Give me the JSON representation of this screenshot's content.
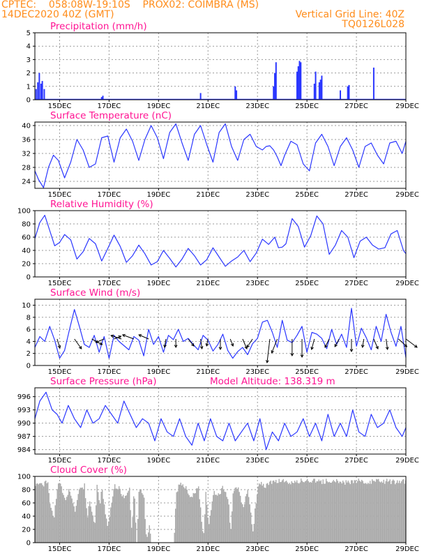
{
  "header": {
    "source": "CPTEC:",
    "coords": "058:08W-19:10S",
    "station": "PROX02: COIMBRA (MS)",
    "run": "14DEC2020 40Z (GMT)",
    "grid_note": "Vertical Grid Line: 40Z",
    "model": "TQ0126L028"
  },
  "colors": {
    "header": "#ff8c1a",
    "title": "#ff1493",
    "series": "#2a36ff",
    "cloud": "#aaaaaa"
  },
  "chart_data": [
    {
      "type": "bar",
      "title": "Precipitation (mm/h)",
      "ylim": [
        0,
        5
      ],
      "yticks": [
        0,
        1,
        2,
        3,
        4,
        5
      ],
      "xlim": [
        14.0,
        29.0
      ],
      "xticks": [
        "15DEC",
        "17DEC",
        "19DEC",
        "21DEC",
        "23DEC",
        "25DEC",
        "27DEC",
        "29DEC"
      ],
      "x": [
        14.05,
        14.12,
        14.18,
        14.25,
        14.3,
        14.38,
        16.7,
        16.75,
        20.7,
        22.1,
        22.15,
        23.65,
        23.7,
        23.75,
        24.6,
        24.65,
        24.7,
        24.75,
        25.3,
        25.35,
        25.5,
        25.55,
        25.6,
        26.35,
        26.65,
        26.7,
        27.7
      ],
      "values": [
        0.8,
        1.3,
        2.0,
        1.2,
        1.4,
        0.8,
        0.2,
        0.3,
        0.5,
        1.0,
        0.7,
        1.0,
        2.0,
        2.8,
        2.1,
        2.5,
        2.9,
        2.8,
        1.2,
        2.1,
        1.3,
        1.5,
        1.8,
        0.7,
        1.0,
        1.1,
        2.4
      ]
    },
    {
      "type": "line",
      "title": "Surface Temperature (nC)",
      "ylim": [
        22,
        41
      ],
      "yticks": [
        24,
        28,
        32,
        36,
        40
      ],
      "xlim": [
        14.0,
        29.0
      ],
      "xticks": [
        "15DEC",
        "17DEC",
        "19DEC",
        "21DEC",
        "23DEC",
        "25DEC",
        "27DEC",
        "29DEC"
      ],
      "x": [
        14.0,
        14.15,
        14.35,
        14.55,
        14.75,
        14.95,
        15.2,
        15.45,
        15.7,
        15.95,
        16.2,
        16.45,
        16.7,
        16.95,
        17.2,
        17.45,
        17.7,
        17.95,
        18.2,
        18.45,
        18.7,
        18.95,
        19.2,
        19.45,
        19.7,
        19.95,
        20.2,
        20.45,
        20.7,
        20.95,
        21.2,
        21.45,
        21.7,
        21.95,
        22.2,
        22.45,
        22.7,
        22.95,
        23.2,
        23.35,
        23.5,
        23.65,
        23.8,
        23.95,
        24.1,
        24.35,
        24.6,
        24.85,
        25.1,
        25.35,
        25.6,
        25.85,
        26.1,
        26.35,
        26.6,
        26.85,
        27.1,
        27.35,
        27.6,
        27.85,
        28.1,
        28.35,
        28.6,
        28.85,
        29.0
      ],
      "values": [
        27,
        24.5,
        22.2,
        28,
        31.5,
        30,
        25,
        29.5,
        36,
        33,
        28,
        29,
        36.5,
        37,
        29.5,
        36.5,
        39,
        35.5,
        30,
        36,
        40,
        36.5,
        30.5,
        38,
        40.5,
        35,
        30,
        37.5,
        40,
        34.5,
        29.5,
        38,
        40.5,
        34,
        30,
        36,
        37.5,
        34,
        33,
        34,
        34.2,
        33,
        31,
        28.5,
        31.5,
        35.5,
        34.5,
        29,
        27,
        35,
        37.5,
        34,
        28.5,
        34,
        36.5,
        33,
        28,
        34,
        35,
        31.5,
        29,
        35,
        35.5,
        32,
        35.5
      ]
    },
    {
      "type": "line",
      "title": "Relative Humidity (%)",
      "ylim": [
        0,
        100
      ],
      "yticks": [
        0,
        20,
        40,
        60,
        80,
        100
      ],
      "xlim": [
        14.0,
        29.0
      ],
      "xticks": [
        "15DEC",
        "17DEC",
        "19DEC",
        "21DEC",
        "23DEC",
        "25DEC",
        "27DEC",
        "29DEC"
      ],
      "x": [
        14.0,
        14.2,
        14.4,
        14.6,
        14.8,
        15.0,
        15.2,
        15.45,
        15.7,
        15.95,
        16.2,
        16.45,
        16.7,
        16.95,
        17.2,
        17.45,
        17.7,
        17.95,
        18.2,
        18.45,
        18.7,
        18.95,
        19.2,
        19.45,
        19.7,
        19.95,
        20.2,
        20.45,
        20.7,
        20.95,
        21.2,
        21.45,
        21.7,
        21.95,
        22.2,
        22.45,
        22.7,
        22.95,
        23.2,
        23.45,
        23.7,
        23.85,
        24.0,
        24.15,
        24.4,
        24.65,
        24.9,
        25.15,
        25.4,
        25.65,
        25.9,
        26.15,
        26.4,
        26.65,
        26.9,
        27.15,
        27.4,
        27.65,
        27.9,
        28.15,
        28.4,
        28.65,
        28.9,
        29.0
      ],
      "values": [
        58,
        82,
        93,
        70,
        47,
        52,
        64,
        56,
        27,
        38,
        58,
        50,
        24,
        43,
        63,
        46,
        22,
        32,
        48,
        35,
        18,
        23,
        40,
        28,
        15,
        27,
        43,
        32,
        18,
        26,
        44,
        30,
        16,
        24,
        30,
        40,
        23,
        36,
        57,
        49,
        60,
        44,
        45,
        50,
        88,
        76,
        45,
        62,
        92,
        80,
        34,
        48,
        70,
        60,
        29,
        54,
        60,
        48,
        42,
        44,
        65,
        70,
        40,
        35
      ]
    },
    {
      "type": "line",
      "title": "Surface Wind (m/s)",
      "ylim": [
        0,
        11
      ],
      "yticks": [
        0,
        2,
        4,
        6,
        8,
        10
      ],
      "xlim": [
        14.0,
        29.0
      ],
      "xticks": [
        "15DEC",
        "17DEC",
        "19DEC",
        "21DEC",
        "23DEC",
        "25DEC",
        "27DEC",
        "29DEC"
      ],
      "x": [
        14.0,
        14.2,
        14.4,
        14.6,
        14.8,
        15.0,
        15.2,
        15.4,
        15.6,
        15.8,
        16.0,
        16.2,
        16.4,
        16.6,
        16.8,
        17.0,
        17.2,
        17.4,
        17.6,
        17.8,
        18.0,
        18.2,
        18.4,
        18.6,
        18.8,
        19.0,
        19.2,
        19.4,
        19.6,
        19.8,
        20.0,
        20.2,
        20.4,
        20.6,
        20.8,
        21.0,
        21.2,
        21.4,
        21.6,
        21.8,
        22.0,
        22.2,
        22.4,
        22.6,
        22.8,
        23.0,
        23.2,
        23.4,
        23.6,
        23.8,
        24.0,
        24.2,
        24.4,
        24.6,
        24.8,
        25.0,
        25.2,
        25.4,
        25.6,
        25.8,
        26.0,
        26.2,
        26.4,
        26.6,
        26.8,
        27.0,
        27.2,
        27.4,
        27.6,
        27.8,
        28.0,
        28.2,
        28.4,
        28.6,
        28.8,
        29.0
      ],
      "values": [
        3,
        4.8,
        4,
        6.5,
        4.2,
        1.2,
        2.5,
        6,
        9.3,
        6.5,
        3.5,
        3,
        5,
        2.2,
        4.8,
        1.2,
        5,
        4,
        3.3,
        2.6,
        4.8,
        4.2,
        1.6,
        6,
        3.5,
        4.8,
        2.2,
        5,
        4.3,
        6,
        4,
        4.5,
        3.5,
        2.6,
        5,
        4.2,
        2.4,
        3.5,
        5.2,
        2.5,
        1.2,
        2.3,
        3,
        1.8,
        3.6,
        4.5,
        7.2,
        7.5,
        5.5,
        3,
        7.5,
        4.2,
        3.8,
        5,
        6.5,
        2.2,
        5.5,
        5.2,
        4.5,
        2.8,
        6,
        3.5,
        5.2,
        3,
        9.5,
        3.2,
        6.2,
        4.6,
        2.6,
        6.5,
        4,
        8.5,
        5.5,
        3.2,
        6.5,
        1.3
      ],
      "vectors": {
        "x": [
          14.9,
          15.6,
          16.3,
          16.8,
          17.2,
          17.5,
          18.0,
          18.6,
          19.3,
          19.7,
          20.2,
          20.7,
          21.0,
          21.5,
          21.9,
          22.4,
          22.8,
          23.5,
          23.8,
          24.4,
          24.8,
          25.3,
          25.9,
          26.3,
          26.8,
          27.3,
          27.7,
          28.2,
          28.7,
          29.0
        ],
        "u": [
          0.4,
          1.0,
          1.5,
          -1.2,
          1.0,
          -1.5,
          -1.6,
          -1.4,
          -0.2,
          0.0,
          0.8,
          0.2,
          -0.2,
          0.0,
          0.4,
          0.6,
          -0.8,
          -0.4,
          -0.8,
          0.0,
          0.0,
          -0.4,
          -0.6,
          -0.6,
          0.0,
          -0.2,
          0.6,
          0.2,
          1.2,
          1.6
        ],
        "v": [
          -1.3,
          -1.4,
          -0.8,
          -0.5,
          0.4,
          0.5,
          0.6,
          0.6,
          -1.2,
          -1.2,
          -1.0,
          -1.4,
          -1.0,
          -1.5,
          -1.0,
          -1.4,
          -1.2,
          -3.4,
          -2.0,
          -2.4,
          -2.6,
          -1.5,
          -1.2,
          -1.1,
          -1.8,
          -1.2,
          -1.4,
          -1.5,
          -1.1,
          -1.2
        ]
      }
    },
    {
      "type": "line",
      "title": "Surface Pressure (hPa)",
      "annotation": "Model Altitude: 138.319 m",
      "ylim": [
        983,
        998
      ],
      "yticks": [
        984,
        987,
        990,
        993,
        996
      ],
      "xlim": [
        14.0,
        29.0
      ],
      "xticks": [
        "15DEC",
        "17DEC",
        "19DEC",
        "21DEC",
        "23DEC",
        "25DEC",
        "27DEC",
        "29DEC"
      ],
      "x": [
        14.0,
        14.2,
        14.45,
        14.7,
        14.9,
        15.1,
        15.35,
        15.6,
        15.85,
        16.1,
        16.35,
        16.6,
        16.85,
        17.1,
        17.35,
        17.6,
        17.85,
        18.1,
        18.35,
        18.6,
        18.85,
        19.1,
        19.35,
        19.6,
        19.85,
        20.1,
        20.35,
        20.6,
        20.85,
        21.1,
        21.35,
        21.6,
        21.85,
        22.1,
        22.35,
        22.6,
        22.85,
        23.1,
        23.35,
        23.6,
        23.85,
        24.1,
        24.35,
        24.6,
        24.85,
        25.1,
        25.35,
        25.6,
        25.85,
        26.1,
        26.35,
        26.6,
        26.85,
        27.1,
        27.35,
        27.6,
        27.85,
        28.1,
        28.35,
        28.6,
        28.85,
        29.0
      ],
      "values": [
        991,
        995,
        997,
        993,
        992,
        990,
        994,
        991,
        989,
        993,
        990,
        991,
        994,
        992,
        990,
        995,
        992,
        989,
        991,
        990,
        986,
        991,
        988,
        987,
        991,
        987,
        985,
        990,
        986,
        991,
        987,
        986,
        990,
        986,
        988,
        990,
        986,
        991,
        984,
        988,
        986,
        990,
        987,
        988,
        991,
        987,
        990,
        986,
        992,
        987,
        990,
        987,
        993,
        988,
        987,
        992,
        989,
        990,
        993,
        989,
        987,
        989
      ]
    },
    {
      "type": "area",
      "title": "Cloud Cover (%)",
      "ylim": [
        0,
        100
      ],
      "yticks": [
        0,
        20,
        40,
        60,
        80,
        100
      ],
      "xlim": [
        14.0,
        29.0
      ],
      "xticks": [
        "15DEC",
        "17DEC",
        "19DEC",
        "21DEC",
        "23DEC",
        "25DEC",
        "27DEC",
        "29DEC"
      ],
      "x": [
        14.0,
        14.1,
        14.3,
        14.5,
        14.6,
        14.75,
        14.9,
        15.0,
        15.2,
        15.4,
        15.6,
        15.8,
        16.0,
        16.1,
        16.2,
        16.4,
        16.5,
        16.6,
        16.7,
        16.9,
        17.0,
        17.2,
        17.4,
        17.6,
        17.8,
        17.9,
        18.0,
        18.1,
        18.2,
        18.4,
        18.5,
        18.6,
        18.7,
        18.8,
        19.0,
        19.2,
        19.4,
        19.6,
        19.7,
        19.8,
        20.0,
        20.3,
        20.6,
        20.8,
        20.9,
        21.0,
        21.2,
        21.4,
        21.6,
        21.8,
        21.9,
        22.0,
        22.2,
        22.4,
        22.6,
        22.8,
        22.9,
        23.0,
        23.1,
        23.3,
        23.5,
        23.7,
        24.0,
        24.3,
        24.6,
        25.0,
        25.5,
        26.0,
        26.5,
        27.0,
        27.5,
        28.0,
        28.5,
        29.0
      ],
      "values": [
        88,
        95,
        90,
        97,
        60,
        40,
        90,
        95,
        70,
        85,
        50,
        85,
        90,
        40,
        70,
        30,
        92,
        60,
        88,
        30,
        45,
        90,
        85,
        70,
        88,
        20,
        88,
        5,
        88,
        70,
        5,
        30,
        2,
        0,
        0,
        0,
        0,
        0,
        80,
        90,
        92,
        70,
        88,
        10,
        85,
        30,
        80,
        75,
        88,
        70,
        20,
        85,
        90,
        55,
        85,
        20,
        60,
        90,
        95,
        90,
        95,
        96,
        98,
        95,
        97,
        98,
        96,
        97,
        95,
        97,
        96,
        97,
        96,
        97
      ]
    }
  ]
}
